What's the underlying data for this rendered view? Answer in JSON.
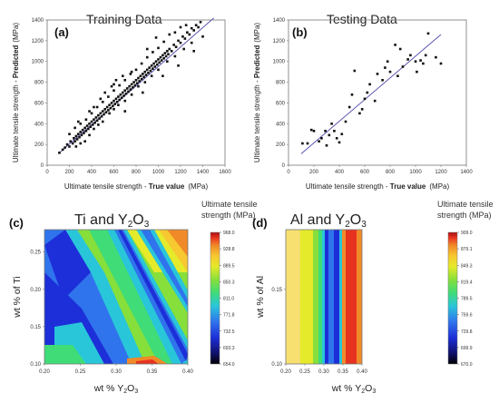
{
  "colors": {
    "point": "#111111",
    "fit_line": "#5a55b0",
    "colormap": [
      "#000000",
      "#10106a",
      "#1d2fd8",
      "#2f74ec",
      "#29c6da",
      "#3fdc78",
      "#86df3a",
      "#e5ea2a",
      "#f7c830",
      "#f08a28",
      "#e83220",
      "#a50f10"
    ]
  },
  "chart_data": [
    {
      "panel": "a",
      "type": "scatter",
      "title": "Training Data",
      "xlabel_plain": "Ultimate tensile strength - ",
      "xlabel_bold": "True value",
      "xlabel_unit": "(MPa)",
      "ylabel_plain": "Ultimate tensile strength - ",
      "ylabel_bold": "Predicted",
      "ylabel_unit": "(MPa)",
      "xlim": [
        0,
        1600
      ],
      "ylim": [
        0,
        1400
      ],
      "xticks": [
        0,
        200,
        400,
        600,
        800,
        1000,
        1200,
        1400,
        1600
      ],
      "yticks": [
        0,
        200,
        400,
        600,
        800,
        1000,
        1200,
        1400
      ],
      "fit_line": [
        [
          100,
          110
        ],
        [
          1500,
          1420
        ]
      ],
      "points": [
        [
          110,
          120
        ],
        [
          140,
          150
        ],
        [
          160,
          170
        ],
        [
          180,
          200
        ],
        [
          200,
          180
        ],
        [
          210,
          230
        ],
        [
          230,
          210
        ],
        [
          240,
          260
        ],
        [
          250,
          230
        ],
        [
          260,
          280
        ],
        [
          270,
          250
        ],
        [
          280,
          300
        ],
        [
          290,
          270
        ],
        [
          300,
          320
        ],
        [
          310,
          290
        ],
        [
          320,
          340
        ],
        [
          330,
          310
        ],
        [
          340,
          360
        ],
        [
          350,
          330
        ],
        [
          360,
          380
        ],
        [
          370,
          350
        ],
        [
          380,
          400
        ],
        [
          390,
          370
        ],
        [
          400,
          420
        ],
        [
          410,
          390
        ],
        [
          420,
          440
        ],
        [
          430,
          410
        ],
        [
          440,
          460
        ],
        [
          450,
          430
        ],
        [
          460,
          480
        ],
        [
          470,
          450
        ],
        [
          480,
          500
        ],
        [
          490,
          470
        ],
        [
          500,
          520
        ],
        [
          510,
          490
        ],
        [
          520,
          540
        ],
        [
          530,
          510
        ],
        [
          540,
          560
        ],
        [
          550,
          530
        ],
        [
          560,
          580
        ],
        [
          570,
          550
        ],
        [
          580,
          600
        ],
        [
          590,
          570
        ],
        [
          600,
          620
        ],
        [
          610,
          590
        ],
        [
          620,
          640
        ],
        [
          630,
          610
        ],
        [
          640,
          660
        ],
        [
          650,
          630
        ],
        [
          660,
          680
        ],
        [
          670,
          650
        ],
        [
          680,
          700
        ],
        [
          690,
          670
        ],
        [
          700,
          720
        ],
        [
          710,
          690
        ],
        [
          720,
          740
        ],
        [
          730,
          710
        ],
        [
          740,
          760
        ],
        [
          750,
          730
        ],
        [
          760,
          780
        ],
        [
          770,
          750
        ],
        [
          780,
          800
        ],
        [
          790,
          770
        ],
        [
          800,
          820
        ],
        [
          810,
          790
        ],
        [
          820,
          840
        ],
        [
          830,
          810
        ],
        [
          840,
          860
        ],
        [
          850,
          830
        ],
        [
          860,
          880
        ],
        [
          870,
          850
        ],
        [
          880,
          900
        ],
        [
          890,
          870
        ],
        [
          900,
          920
        ],
        [
          910,
          890
        ],
        [
          920,
          940
        ],
        [
          930,
          910
        ],
        [
          940,
          960
        ],
        [
          950,
          930
        ],
        [
          960,
          980
        ],
        [
          970,
          950
        ],
        [
          980,
          1000
        ],
        [
          990,
          970
        ],
        [
          1000,
          1020
        ],
        [
          1010,
          990
        ],
        [
          1020,
          1040
        ],
        [
          1030,
          1010
        ],
        [
          1040,
          1060
        ],
        [
          1050,
          1030
        ],
        [
          1060,
          1080
        ],
        [
          1070,
          1050
        ],
        [
          1080,
          1100
        ],
        [
          1090,
          1070
        ],
        [
          1100,
          1120
        ],
        [
          1120,
          1100
        ],
        [
          1140,
          1160
        ],
        [
          1160,
          1140
        ],
        [
          1180,
          1200
        ],
        [
          1200,
          1180
        ],
        [
          1220,
          1240
        ],
        [
          1240,
          1220
        ],
        [
          1260,
          1280
        ],
        [
          1280,
          1260
        ],
        [
          1300,
          1320
        ],
        [
          1320,
          1300
        ],
        [
          1340,
          1350
        ],
        [
          1360,
          1330
        ],
        [
          1380,
          1380
        ],
        [
          1400,
          1240
        ],
        [
          260,
          180
        ],
        [
          300,
          210
        ],
        [
          340,
          230
        ],
        [
          380,
          290
        ],
        [
          420,
          350
        ],
        [
          460,
          390
        ],
        [
          500,
          420
        ],
        [
          560,
          500
        ],
        [
          600,
          540
        ],
        [
          640,
          580
        ],
        [
          700,
          620
        ],
        [
          760,
          680
        ],
        [
          820,
          760
        ],
        [
          880,
          800
        ],
        [
          940,
          860
        ],
        [
          1000,
          920
        ],
        [
          1080,
          1000
        ],
        [
          1150,
          1050
        ],
        [
          1230,
          1120
        ],
        [
          1300,
          1180
        ],
        [
          200,
          300
        ],
        [
          250,
          360
        ],
        [
          300,
          400
        ],
        [
          350,
          440
        ],
        [
          400,
          500
        ],
        [
          450,
          560
        ],
        [
          500,
          610
        ],
        [
          550,
          660
        ],
        [
          600,
          720
        ],
        [
          650,
          770
        ],
        [
          700,
          820
        ],
        [
          750,
          880
        ],
        [
          800,
          920
        ],
        [
          850,
          980
        ],
        [
          900,
          1040
        ],
        [
          950,
          1090
        ],
        [
          1000,
          1130
        ],
        [
          1050,
          1190
        ],
        [
          1100,
          1260
        ],
        [
          1200,
          1330
        ],
        [
          420,
          560
        ],
        [
          520,
          700
        ],
        [
          620,
          820
        ],
        [
          900,
          1120
        ],
        [
          980,
          1230
        ],
        [
          1150,
          1280
        ],
        [
          1250,
          1350
        ],
        [
          700,
          520
        ],
        [
          860,
          700
        ],
        [
          1040,
          860
        ],
        [
          1180,
          960
        ],
        [
          1320,
          1100
        ],
        [
          760,
          900
        ],
        [
          680,
          860
        ],
        [
          580,
          760
        ],
        [
          480,
          640
        ],
        [
          380,
          520
        ],
        [
          280,
          420
        ],
        [
          600,
          780
        ]
      ]
    },
    {
      "panel": "b",
      "type": "scatter",
      "title": "Testing Data",
      "xlabel_plain": "Ultimate tensile strength - ",
      "xlabel_bold": "True value",
      "xlabel_unit": "(MPa)",
      "ylabel_plain": "Ultimate tensile strength - ",
      "ylabel_bold": "Predicted",
      "ylabel_unit": "(MPa)",
      "xlim": [
        0,
        1400
      ],
      "ylim": [
        0,
        1400
      ],
      "xticks": [
        0,
        200,
        400,
        600,
        800,
        1000,
        1200,
        1400
      ],
      "yticks": [
        0,
        200,
        400,
        600,
        800,
        1000,
        1200,
        1400
      ],
      "fit_line": [
        [
          100,
          110
        ],
        [
          1200,
          1260
        ]
      ],
      "points": [
        [
          110,
          210
        ],
        [
          150,
          210
        ],
        [
          180,
          340
        ],
        [
          200,
          330
        ],
        [
          240,
          230
        ],
        [
          260,
          260
        ],
        [
          290,
          330
        ],
        [
          300,
          190
        ],
        [
          320,
          290
        ],
        [
          340,
          400
        ],
        [
          360,
          330
        ],
        [
          380,
          260
        ],
        [
          400,
          220
        ],
        [
          420,
          300
        ],
        [
          450,
          420
        ],
        [
          480,
          560
        ],
        [
          500,
          680
        ],
        [
          520,
          910
        ],
        [
          560,
          500
        ],
        [
          580,
          540
        ],
        [
          600,
          640
        ],
        [
          620,
          700
        ],
        [
          640,
          780
        ],
        [
          680,
          620
        ],
        [
          700,
          880
        ],
        [
          740,
          820
        ],
        [
          760,
          940
        ],
        [
          780,
          1000
        ],
        [
          800,
          900
        ],
        [
          840,
          1160
        ],
        [
          860,
          860
        ],
        [
          880,
          1120
        ],
        [
          900,
          950
        ],
        [
          940,
          1020
        ],
        [
          960,
          1060
        ],
        [
          1000,
          1000
        ],
        [
          1010,
          900
        ],
        [
          1040,
          1010
        ],
        [
          1060,
          980
        ],
        [
          1080,
          1060
        ],
        [
          1100,
          1270
        ],
        [
          1160,
          1040
        ],
        [
          1200,
          980
        ]
      ]
    },
    {
      "panel": "c",
      "type": "heatmap",
      "title_prefix": "Ti and Y",
      "title_sub": "2",
      "title_suffix": "O",
      "title_sub2": "3",
      "xlabel_prefix": "wt % Y",
      "xlabel_sub": "2",
      "xlabel_suffix": "O",
      "xlabel_sub2": "3",
      "ylabel": "wt % of Ti",
      "xlim": [
        0.2,
        0.4
      ],
      "ylim": [
        0.1,
        0.28
      ],
      "xticks": [
        "0.20",
        "0.25",
        "0.30",
        "0.35",
        "0.40"
      ],
      "yticks": [
        "0.10",
        "0.15",
        "0.20",
        "0.25"
      ],
      "colorbar_title_1": "Ultimate tensile",
      "colorbar_title_2": "strength (MPa)",
      "colorbar_ticks": [
        "968.0",
        "928.8",
        "889.5",
        "850.3",
        "811.0",
        "771.8",
        "732.5",
        "693.3",
        "654.0"
      ],
      "zmin": 654.0,
      "zmax": 968.0
    },
    {
      "panel": "d",
      "type": "heatmap",
      "title_prefix": "Al and Y",
      "title_sub": "2",
      "title_suffix": "O",
      "title_sub2": "3",
      "xlabel_prefix": "wt % Y",
      "xlabel_sub": "2",
      "xlabel_suffix": "O",
      "xlabel_sub2": "3",
      "ylabel": "wt % of Al",
      "xlim": [
        0.2,
        0.4
      ],
      "ylim": [
        0.1,
        0.19
      ],
      "xticks": [
        "0.20",
        "0.25",
        "0.30",
        "0.35",
        "0.40"
      ],
      "yticks": [
        "0.10",
        "0.15"
      ],
      "colorbar_title_1": "Ultimate tensile",
      "colorbar_title_2": "strength (MPa)",
      "colorbar_ticks": [
        "909.0",
        "879.1",
        "849.3",
        "819.4",
        "789.5",
        "759.6",
        "729.8",
        "699.9",
        "670.0"
      ],
      "zmin": 670.0,
      "zmax": 909.0
    }
  ]
}
